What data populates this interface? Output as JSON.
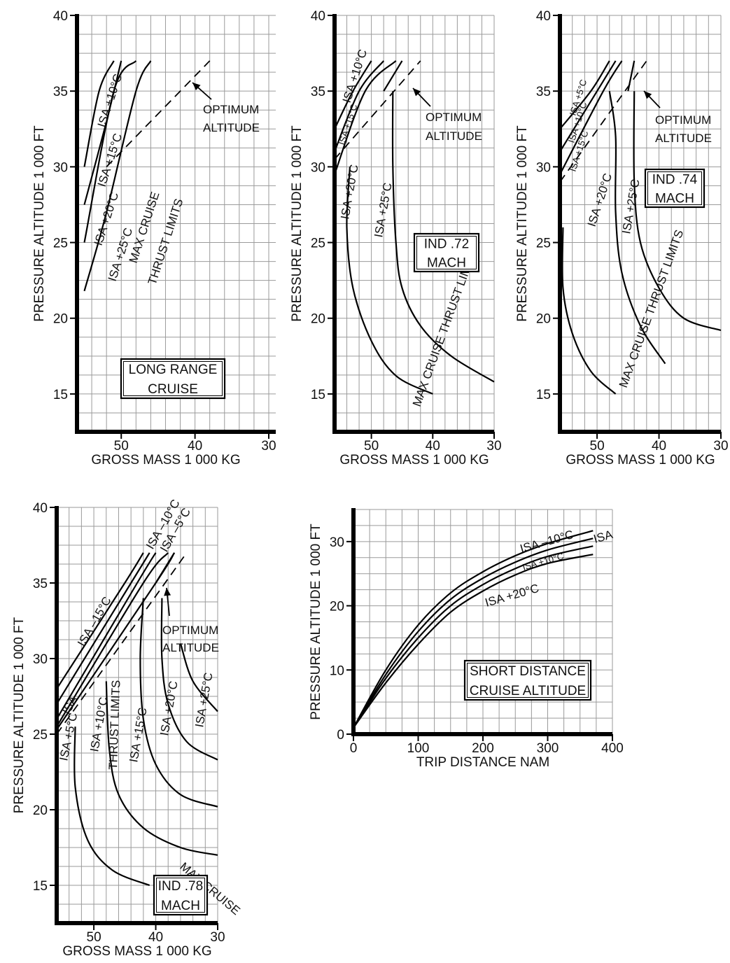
{
  "chart_data": [
    {
      "id": "lrc",
      "type": "line",
      "title": "LONG RANGE CRUISE",
      "xlabel": "GROSS MASS 1 000 KG",
      "ylabel": "PRESSURE ALTITUDE 1 000 FT",
      "xlim": [
        56,
        30
      ],
      "ylim": [
        12.5,
        40
      ],
      "xticks": [
        50,
        40,
        30
      ],
      "yticks": [
        15,
        20,
        25,
        30,
        35,
        40
      ],
      "grid": true,
      "series": [
        {
          "name": "ISA +10°C",
          "points": [
            [
              55,
              30
            ],
            [
              53,
              35
            ],
            [
              51,
              37
            ]
          ]
        },
        {
          "name": "ISA +15°C",
          "points": [
            [
              55,
              27.5
            ],
            [
              52,
              33
            ],
            [
              50,
              37
            ]
          ]
        },
        {
          "name": "ISA +20°C",
          "points": [
            [
              55,
              25
            ],
            [
              51,
              35
            ],
            [
              48,
              37
            ]
          ]
        },
        {
          "name": "ISA +25°C",
          "points": [
            [
              55,
              21.8
            ],
            [
              52,
              27
            ],
            [
              48,
              35
            ],
            [
              46,
              37
            ]
          ]
        },
        {
          "name": "OPTIMUM ALTITUDE",
          "style": "dashed",
          "points": [
            [
              52,
              30
            ],
            [
              38,
              37
            ]
          ]
        }
      ],
      "annotations": [
        "MAX CRUISE",
        "THRUST LIMITS",
        "OPTIMUM",
        "ALTITUDE"
      ]
    },
    {
      "id": "m72",
      "type": "line",
      "title": "IND .72 MACH",
      "xlabel": "GROSS MASS 1 000 KG",
      "ylabel": "PRESSURE ALTITUDE 1 000 FT",
      "xlim": [
        56,
        30
      ],
      "ylim": [
        12.5,
        40
      ],
      "xticks": [
        50,
        40,
        30
      ],
      "yticks": [
        15,
        20,
        25,
        30,
        35,
        40
      ],
      "grid": true,
      "series": [
        {
          "name": "ISA +10°C",
          "points": [
            [
              56,
              32.5
            ],
            [
              53,
              35
            ],
            [
              50,
              37
            ]
          ]
        },
        {
          "name": "ISA +15°C",
          "points": [
            [
              56,
              31
            ],
            [
              52,
              35
            ],
            [
              48,
              37
            ]
          ]
        },
        {
          "name": "ISA +20°C",
          "points": [
            [
              56,
              29.5
            ],
            [
              51,
              35
            ],
            [
              46,
              37
            ]
          ]
        },
        {
          "name": "ISA +25°C",
          "points": [
            [
              48,
              35
            ],
            [
              45,
              37
            ]
          ]
        },
        {
          "name": "MAX CRUISE THRUST LIMITS",
          "points": [
            [
              53.5,
              30
            ],
            [
              54,
              26
            ],
            [
              53,
              22
            ],
            [
              50,
              18.5
            ],
            [
              46,
              16.2
            ],
            [
              40,
              15
            ]
          ]
        },
        {
          "name": "ISA +25°C",
          "points": [
            [
              46.5,
              35
            ],
            [
              46.5,
              30
            ],
            [
              46,
              25
            ],
            [
              45,
              22
            ],
            [
              42,
              19.5
            ],
            [
              37,
              17.5
            ],
            [
              30,
              15.8
            ]
          ]
        },
        {
          "name": "OPTIMUM ALTITUDE",
          "style": "dashed",
          "points": [
            [
              56,
              30.5
            ],
            [
              42,
              37
            ]
          ]
        }
      ],
      "annotations": [
        "ISA +10°C",
        "ISA +15°C",
        "ISA +20°C",
        "ISA +25°C",
        "MAX CRUISE THRUST LIMITS",
        "OPTIMUM",
        "ALTITUDE"
      ]
    },
    {
      "id": "m74",
      "type": "line",
      "title": "IND .74 MACH",
      "xlabel": "GROSS MASS 1 000 KG",
      "ylabel": "PRESSURE ALTITUDE 1 000 FT",
      "xlim": [
        56,
        30
      ],
      "ylim": [
        12.5,
        40
      ],
      "xticks": [
        50,
        40,
        30
      ],
      "yticks": [
        15,
        20,
        25,
        30,
        35,
        40
      ],
      "grid": true,
      "series": [
        {
          "name": "ISA +5°C",
          "points": [
            [
              56,
              32.5
            ],
            [
              51,
              35
            ],
            [
              48,
              37
            ]
          ]
        },
        {
          "name": "ISA +10°C",
          "points": [
            [
              56,
              31
            ],
            [
              50,
              35
            ],
            [
              47,
              37
            ]
          ]
        },
        {
          "name": "ISA +15°C",
          "points": [
            [
              56,
              29.5
            ],
            [
              49,
              35
            ],
            [
              46,
              37
            ]
          ]
        },
        {
          "name": "MAX CRUISE THRUST LIMITS",
          "points": [
            [
              55.5,
              26
            ],
            [
              55.5,
              22
            ],
            [
              54,
              19
            ],
            [
              51,
              16.5
            ],
            [
              47,
              15
            ]
          ]
        },
        {
          "name": "ISA +20°C",
          "points": [
            [
              48,
              35
            ],
            [
              47,
              32
            ],
            [
              47,
              27
            ],
            [
              46,
              23
            ],
            [
              43,
              19.5
            ],
            [
              39,
              17
            ]
          ]
        },
        {
          "name": "ISA +25°C",
          "points": [
            [
              45,
              35
            ],
            [
              44,
              37
            ]
          ]
        },
        {
          "name": "ISA +25°C",
          "points": [
            [
              44,
              35
            ],
            [
              44,
              29
            ],
            [
              43,
              25
            ],
            [
              40,
              22
            ],
            [
              36,
              20
            ],
            [
              30,
              19.2
            ]
          ]
        },
        {
          "name": "OPTIMUM ALTITUDE",
          "style": "dashed",
          "points": [
            [
              56,
              29
            ],
            [
              42,
              37
            ]
          ]
        }
      ],
      "annotations": [
        "ISA +5°C",
        "ISA +10°C",
        "ISA +15°C",
        "ISA +20°C",
        "ISA +25°C",
        "MAX CRUISE THRUST LIMITS",
        "OPTIMUM",
        "ALTITUDE"
      ]
    },
    {
      "id": "m78",
      "type": "line",
      "title": "IND .78 MACH",
      "xlabel": "GROSS MASS 1 000 KG",
      "ylabel": "PRESSURE ALTITUDE 1 000 FT",
      "xlim": [
        56,
        30
      ],
      "ylim": [
        12.5,
        40
      ],
      "xticks": [
        50,
        40,
        30
      ],
      "yticks": [
        15,
        20,
        25,
        30,
        35,
        40
      ],
      "grid": true,
      "series": [
        {
          "name": "ISA –15°C",
          "points": [
            [
              56,
              28
            ],
            [
              45,
              35
            ],
            [
              42,
              37
            ]
          ]
        },
        {
          "name": "ISA –10°C",
          "points": [
            [
              56,
              27
            ],
            [
              44,
              35
            ],
            [
              41,
              37
            ]
          ]
        },
        {
          "name": "ISA –5°C",
          "points": [
            [
              56,
              26
            ],
            [
              43,
              35
            ],
            [
              40,
              37
            ]
          ]
        },
        {
          "name": "ISA",
          "points": [
            [
              56,
              25.5
            ],
            [
              42,
              35
            ],
            [
              38,
              37
            ]
          ]
        },
        {
          "name": "ISA +5°C",
          "points": [
            [
              56,
              25.3
            ],
            [
              40,
              35
            ],
            [
              37,
              37
            ]
          ]
        },
        {
          "name": "ISA +10°C",
          "points": [
            [
              40,
              35
            ],
            [
              37,
              37
            ]
          ]
        },
        {
          "name": "ISA +10°C",
          "points": [
            [
              53,
              25.5
            ],
            [
              53,
              21.5
            ],
            [
              51,
              18
            ],
            [
              47,
              16
            ],
            [
              41,
              15
            ]
          ]
        },
        {
          "name": "MAX CRUISE THRUST LIMITS",
          "points": [
            [
              48,
              28.5
            ],
            [
              47.5,
              24
            ],
            [
              46,
              21
            ],
            [
              42,
              18.8
            ],
            [
              36,
              17.5
            ],
            [
              30,
              17
            ]
          ]
        },
        {
          "name": "ISA +15°C",
          "points": [
            [
              42,
              34
            ],
            [
              42.5,
              30
            ],
            [
              42,
              26
            ],
            [
              40,
              23
            ],
            [
              36,
              21
            ],
            [
              30,
              20.2
            ]
          ]
        },
        {
          "name": "ISA +20°C",
          "points": [
            [
              39,
              34
            ],
            [
              39,
              30
            ],
            [
              38,
              27
            ],
            [
              35,
              24.5
            ],
            [
              30,
              23.3
            ]
          ]
        },
        {
          "name": "ISA +25°C",
          "points": [
            [
              36,
              31
            ],
            [
              34,
              28.5
            ],
            [
              30,
              26.5
            ]
          ]
        },
        {
          "name": "OPTIMUM ALTITUDE",
          "style": "dashed",
          "points": [
            [
              56,
              25
            ],
            [
              35,
              37
            ]
          ]
        }
      ],
      "annotations": [
        "ISA –10°C",
        "ISA –5°C",
        "ISA –15°C",
        "ISA",
        "ISA +5°C",
        "ISA +10°C",
        "THRUST LIMITS",
        "ISA +15°C",
        "ISA +20°C",
        "ISA +25°C",
        "MAX CRUISE",
        "OPTIMUM",
        "ALTITUDE"
      ]
    },
    {
      "id": "sd",
      "type": "line",
      "title": "SHORT DISTANCE CRUISE ALTITUDE",
      "xlabel": "TRIP DISTANCE NAM",
      "ylabel": "PRESSURE ALTITUDE 1 000 FT",
      "xlim": [
        0,
        400
      ],
      "ylim": [
        0,
        35
      ],
      "xticks": [
        0,
        100,
        200,
        300,
        400
      ],
      "yticks": [
        0,
        10,
        20,
        30
      ],
      "grid": true,
      "series": [
        {
          "name": "ISA –10°C",
          "points": [
            [
              0,
              1
            ],
            [
              50,
              10
            ],
            [
              100,
              17
            ],
            [
              150,
              22
            ],
            [
              200,
              25.3
            ],
            [
              250,
              27.8
            ],
            [
              300,
              29.7
            ],
            [
              370,
              31.7
            ]
          ]
        },
        {
          "name": "ISA",
          "points": [
            [
              0,
              1
            ],
            [
              50,
              9.3
            ],
            [
              100,
              16
            ],
            [
              150,
              21
            ],
            [
              200,
              24.3
            ],
            [
              250,
              26.8
            ],
            [
              300,
              28.7
            ],
            [
              370,
              30.5
            ]
          ]
        },
        {
          "name": "ISA +10°C",
          "points": [
            [
              0,
              1
            ],
            [
              50,
              8.7
            ],
            [
              100,
              15
            ],
            [
              150,
              20
            ],
            [
              200,
              23.3
            ],
            [
              250,
              25.8
            ],
            [
              300,
              27.7
            ],
            [
              370,
              29.3
            ]
          ]
        },
        {
          "name": "ISA +20°C",
          "points": [
            [
              0,
              1
            ],
            [
              50,
              8
            ],
            [
              100,
              14
            ],
            [
              150,
              19
            ],
            [
              200,
              22.3
            ],
            [
              250,
              24.8
            ],
            [
              300,
              26.6
            ],
            [
              370,
              28
            ]
          ]
        }
      ],
      "annotations": [
        "ISA –10°C",
        "ISA",
        "ISA +10°C",
        "ISA +20°C"
      ]
    }
  ]
}
